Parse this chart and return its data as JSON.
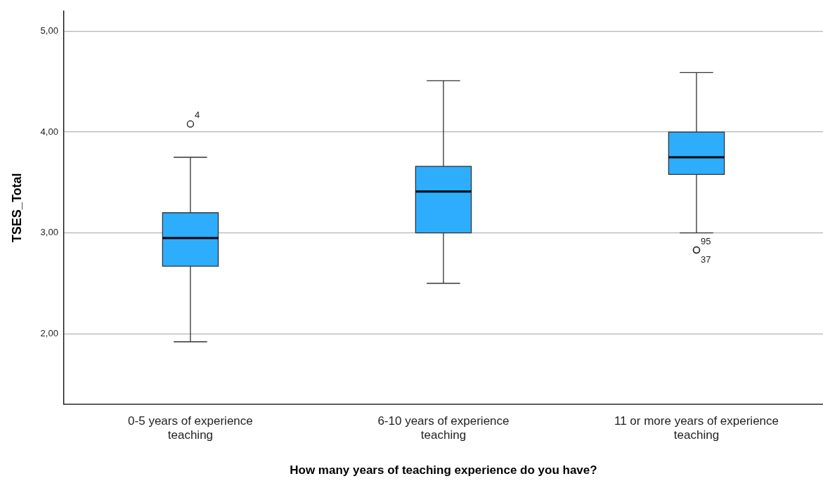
{
  "chart_data": {
    "type": "box",
    "xlabel": "How many years of teaching experience do you have?",
    "ylabel": "TSES_Total",
    "categories": [
      "0-5 years of experience teaching",
      "6-10 years of experience teaching",
      "11 or more years of experience teaching"
    ],
    "color": "#2eadfd",
    "boxes": [
      {
        "low": 1.92,
        "q1": 2.67,
        "median": 2.95,
        "q3": 3.2,
        "high": 3.75,
        "outliers": [
          4.08
        ]
      },
      {
        "low": 2.5,
        "q1": 3.0,
        "median": 3.41,
        "q3": 3.66,
        "high": 4.51
      },
      {
        "low": 3.0,
        "q1": 3.58,
        "median": 3.75,
        "q3": 4.0,
        "high": 4.59,
        "outliers": [
          2.83,
          2.83
        ]
      }
    ],
    "ylim": [
      1.3,
      5.2
    ],
    "yticks": [
      {
        "value": 2,
        "label": "2,00"
      },
      {
        "value": 3,
        "label": "3,00"
      },
      {
        "value": 4,
        "label": "4,00"
      },
      {
        "value": 5,
        "label": "5,00"
      }
    ],
    "grid": "y",
    "annotations": [
      "4",
      "95",
      "37"
    ]
  }
}
